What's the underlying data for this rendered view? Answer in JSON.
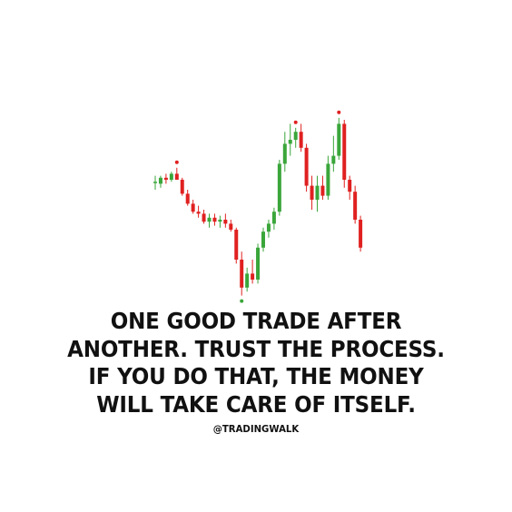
{
  "chart_data": {
    "type": "candlestick",
    "title": "",
    "xlabel": "",
    "ylabel": "",
    "ylim": [
      0,
      100
    ],
    "colors": {
      "up": "#3aa63a",
      "down": "#e02020",
      "marker": "#e02020",
      "low_marker": "#3aa63a"
    },
    "candles": [
      {
        "o": 59,
        "h": 62,
        "l": 55,
        "c": 59
      },
      {
        "o": 58,
        "h": 62,
        "l": 56,
        "c": 61
      },
      {
        "o": 61,
        "h": 63,
        "l": 58,
        "c": 60
      },
      {
        "o": 60,
        "h": 64,
        "l": 59,
        "c": 63
      },
      {
        "o": 63,
        "h": 66,
        "l": 60,
        "c": 60
      },
      {
        "o": 60,
        "h": 61,
        "l": 52,
        "c": 53
      },
      {
        "o": 53,
        "h": 55,
        "l": 47,
        "c": 48
      },
      {
        "o": 48,
        "h": 50,
        "l": 43,
        "c": 44
      },
      {
        "o": 44,
        "h": 47,
        "l": 41,
        "c": 43
      },
      {
        "o": 43,
        "h": 45,
        "l": 38,
        "c": 39
      },
      {
        "o": 39,
        "h": 43,
        "l": 36,
        "c": 41
      },
      {
        "o": 41,
        "h": 43,
        "l": 37,
        "c": 39
      },
      {
        "o": 39,
        "h": 42,
        "l": 36,
        "c": 40
      },
      {
        "o": 40,
        "h": 43,
        "l": 36,
        "c": 38
      },
      {
        "o": 38,
        "h": 40,
        "l": 34,
        "c": 35
      },
      {
        "o": 35,
        "h": 36,
        "l": 18,
        "c": 20
      },
      {
        "o": 20,
        "h": 24,
        "l": 2,
        "c": 6
      },
      {
        "o": 6,
        "h": 16,
        "l": 4,
        "c": 13
      },
      {
        "o": 13,
        "h": 20,
        "l": 8,
        "c": 10
      },
      {
        "o": 10,
        "h": 28,
        "l": 8,
        "c": 26
      },
      {
        "o": 26,
        "h": 36,
        "l": 24,
        "c": 34
      },
      {
        "o": 34,
        "h": 40,
        "l": 31,
        "c": 38
      },
      {
        "o": 38,
        "h": 46,
        "l": 35,
        "c": 44
      },
      {
        "o": 44,
        "h": 70,
        "l": 42,
        "c": 68
      },
      {
        "o": 68,
        "h": 84,
        "l": 64,
        "c": 78
      },
      {
        "o": 78,
        "h": 88,
        "l": 72,
        "c": 80
      },
      {
        "o": 80,
        "h": 86,
        "l": 76,
        "c": 84
      },
      {
        "o": 84,
        "h": 88,
        "l": 74,
        "c": 76
      },
      {
        "o": 76,
        "h": 78,
        "l": 54,
        "c": 57
      },
      {
        "o": 57,
        "h": 62,
        "l": 45,
        "c": 50
      },
      {
        "o": 50,
        "h": 62,
        "l": 44,
        "c": 57
      },
      {
        "o": 57,
        "h": 62,
        "l": 50,
        "c": 52
      },
      {
        "o": 52,
        "h": 72,
        "l": 50,
        "c": 68
      },
      {
        "o": 68,
        "h": 82,
        "l": 64,
        "c": 72
      },
      {
        "o": 72,
        "h": 91,
        "l": 70,
        "c": 88
      },
      {
        "o": 88,
        "h": 90,
        "l": 56,
        "c": 60
      },
      {
        "o": 60,
        "h": 62,
        "l": 50,
        "c": 54
      },
      {
        "o": 54,
        "h": 57,
        "l": 38,
        "c": 40
      },
      {
        "o": 40,
        "h": 42,
        "l": 24,
        "c": 26
      }
    ],
    "high_markers": [
      4,
      26,
      34
    ],
    "low_markers": [
      16
    ]
  },
  "quote": {
    "line1": "ONE GOOD TRADE AFTER",
    "line2": "ANOTHER. TRUST THE PROCESS.",
    "line3": "IF YOU DO THAT, THE MONEY",
    "line4": "WILL TAKE CARE OF ITSELF."
  },
  "handle": "@TRADINGWALK"
}
